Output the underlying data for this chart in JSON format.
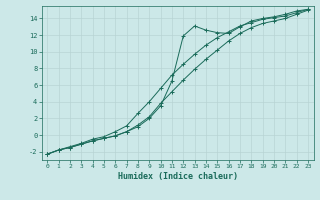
{
  "xlabel": "Humidex (Indice chaleur)",
  "xlim": [
    -0.5,
    23.5
  ],
  "ylim": [
    -3.0,
    15.5
  ],
  "yticks": [
    -2,
    0,
    2,
    4,
    6,
    8,
    10,
    12,
    14
  ],
  "xticks": [
    0,
    1,
    2,
    3,
    4,
    5,
    6,
    7,
    8,
    9,
    10,
    11,
    12,
    13,
    14,
    15,
    16,
    17,
    18,
    19,
    20,
    21,
    22,
    23
  ],
  "bg_color": "#cce8e8",
  "grid_color": "#b8d4d4",
  "line_color": "#1a6b5a",
  "line1_x": [
    0,
    1,
    2,
    3,
    4,
    5,
    6,
    7,
    8,
    9,
    10,
    11,
    12,
    13,
    14,
    15,
    16,
    17,
    18,
    19,
    20,
    21,
    22,
    23
  ],
  "line1_y": [
    -2.3,
    -1.8,
    -1.5,
    -1.1,
    -0.7,
    -0.4,
    -0.1,
    0.4,
    1.0,
    2.0,
    3.5,
    6.5,
    11.9,
    13.1,
    12.6,
    12.3,
    12.2,
    13.0,
    13.7,
    14.0,
    14.2,
    14.5,
    14.9,
    15.1
  ],
  "line2_x": [
    0,
    1,
    2,
    3,
    4,
    5,
    6,
    7,
    8,
    9,
    10,
    11,
    12,
    13,
    14,
    15,
    16,
    17,
    18,
    19,
    20,
    21,
    22,
    23
  ],
  "line2_y": [
    -2.3,
    -1.8,
    -1.5,
    -1.1,
    -0.7,
    -0.4,
    -0.1,
    0.4,
    1.2,
    2.2,
    3.8,
    5.2,
    6.6,
    7.9,
    9.1,
    10.2,
    11.3,
    12.2,
    12.9,
    13.4,
    13.7,
    14.0,
    14.5,
    15.0
  ],
  "line3_x": [
    0,
    1,
    2,
    3,
    4,
    5,
    6,
    7,
    8,
    9,
    10,
    11,
    12,
    13,
    14,
    15,
    16,
    17,
    18,
    19,
    20,
    21,
    22,
    23
  ],
  "line3_y": [
    -2.3,
    -1.8,
    -1.4,
    -1.0,
    -0.5,
    -0.2,
    0.4,
    1.1,
    2.6,
    4.0,
    5.6,
    7.2,
    8.5,
    9.7,
    10.8,
    11.7,
    12.4,
    13.1,
    13.5,
    13.9,
    14.1,
    14.3,
    14.7,
    15.1
  ]
}
